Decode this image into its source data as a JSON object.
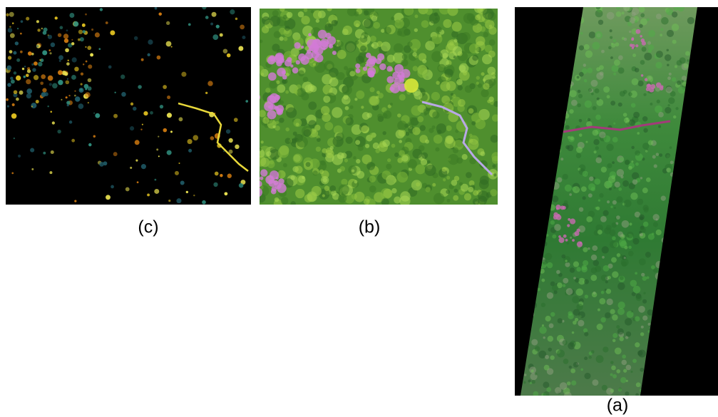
{
  "panels": [
    {
      "label": "(c)"
    },
    {
      "label": "(b)"
    },
    {
      "label": "(a)"
    }
  ]
}
